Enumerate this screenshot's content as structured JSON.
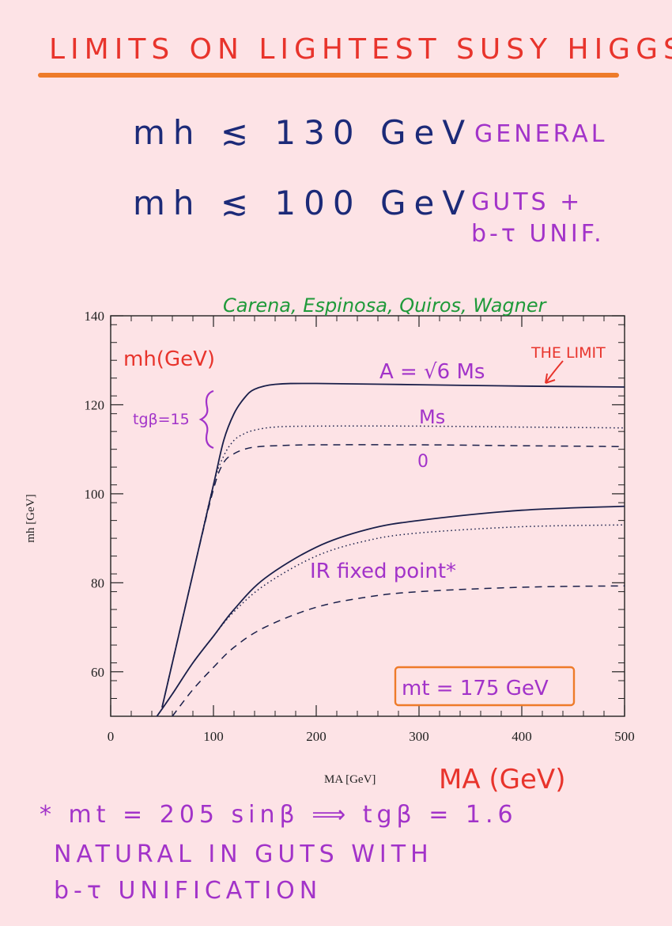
{
  "header": {
    "title": "LIMITS ON LIGHTEST SUSY HIGGS"
  },
  "limits": [
    {
      "expr": "mh ≲ 130 GeV",
      "note": "GENERAL"
    },
    {
      "expr": "mh ≲ 100 GeV",
      "note_line1": "GUTS +",
      "note_line2": "b-τ UNIF."
    }
  ],
  "chart_data": {
    "type": "line",
    "xlabel": "MA [GeV]",
    "ylabel": "mh [GeV]",
    "xlim": [
      0,
      500
    ],
    "ylim": [
      50,
      140
    ],
    "xticks": [
      "0",
      "100",
      "200",
      "300",
      "400",
      "500"
    ],
    "yticks": [
      "60",
      "80",
      "100",
      "120",
      "140"
    ],
    "series": [
      {
        "group": "tgβ=15",
        "style": "solid",
        "x": [
          50,
          80,
          100,
          110,
          120,
          130,
          140,
          160,
          200,
          300,
          400,
          500
        ],
        "y": [
          52,
          82,
          102,
          112,
          118,
          121.5,
          123.5,
          124.6,
          124.8,
          124.5,
          124.2,
          124.0
        ]
      },
      {
        "group": "tgβ=15",
        "style": "dotted",
        "x": [
          50,
          80,
          100,
          110,
          120,
          130,
          140,
          160,
          200,
          300,
          400,
          500
        ],
        "y": [
          52,
          82,
          102,
          108.5,
          112,
          113.5,
          114.3,
          115.0,
          115.2,
          115.2,
          115.0,
          114.8
        ]
      },
      {
        "group": "tgβ=15",
        "style": "dashed",
        "x": [
          50,
          80,
          100,
          110,
          120,
          130,
          140,
          160,
          200,
          300,
          400,
          500
        ],
        "y": [
          52,
          82,
          101,
          107,
          109,
          110,
          110.5,
          110.8,
          111,
          111,
          110.8,
          110.6
        ]
      },
      {
        "group": "IR fixed point",
        "style": "solid",
        "x": [
          45,
          60,
          80,
          100,
          120,
          150,
          200,
          250,
          300,
          400,
          500
        ],
        "y": [
          50,
          55,
          62,
          68,
          74,
          81,
          88,
          92,
          94,
          96.3,
          97.2
        ]
      },
      {
        "group": "IR fixed point",
        "style": "dotted",
        "x": [
          45,
          60,
          80,
          100,
          120,
          150,
          200,
          250,
          300,
          400,
          500
        ],
        "y": [
          50,
          55,
          62,
          68,
          73.5,
          79.5,
          86,
          89.5,
          91.2,
          92.6,
          93.0
        ]
      },
      {
        "group": "IR fixed point",
        "style": "dashed",
        "x": [
          60,
          80,
          100,
          120,
          150,
          200,
          250,
          300,
          400,
          500
        ],
        "y": [
          50,
          56,
          61,
          65.5,
          70,
          74.5,
          76.8,
          78,
          79,
          79.3
        ]
      }
    ],
    "annotations": {
      "ylabel_hand": "mh(GeV)",
      "xlabel_hand": "MA (GeV)",
      "authors": "Carena, Espinosa, Quiros, Wagner",
      "the_limit": "THE LIMIT",
      "curve_a": "A = √6 Ms",
      "curve_ms": "Ms",
      "curve_zero": "0",
      "tanbeta": "tgβ=15",
      "ir_fixed": "IR fixed point*",
      "mt_box": "mt = 175 GeV"
    }
  },
  "footer": {
    "line1": "* mt = 205 sinβ ⟹ tgβ = 1.6",
    "line2": "NATURAL IN GUTS WITH",
    "line3": "b-τ UNIFICATION"
  },
  "colors": {
    "background": "#fde3e6",
    "red": "#e8342c",
    "orange": "#ee7b2a",
    "purple": "#a233c9",
    "green": "#1f9a3a",
    "ink": "#1c2a78"
  }
}
